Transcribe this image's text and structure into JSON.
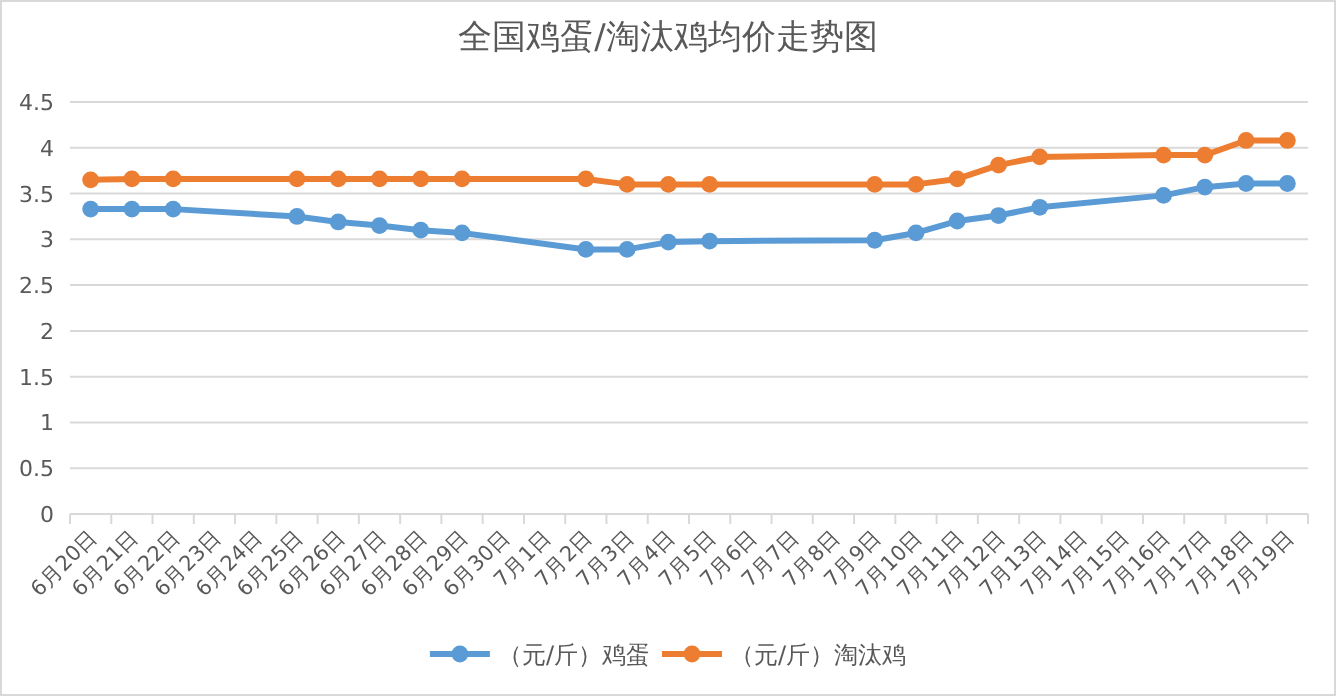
{
  "chart_data": {
    "type": "line",
    "title": "全国鸡蛋/淘汰鸡均价走势图",
    "categories": [
      "6月20日",
      "6月21日",
      "6月22日",
      "6月23日",
      "6月24日",
      "6月25日",
      "6月26日",
      "6月27日",
      "6月28日",
      "6月29日",
      "6月30日",
      "7月1日",
      "7月2日",
      "7月3日",
      "7月4日",
      "7月5日",
      "7月6日",
      "7月7日",
      "7月8日",
      "7月9日",
      "7月10日",
      "7月11日",
      "7月12日",
      "7月13日",
      "7月14日",
      "7月15日",
      "7月16日",
      "7月17日",
      "7月18日",
      "7月19日"
    ],
    "series": [
      {
        "name": "（元/斤）鸡蛋",
        "color": "#5b9bd5",
        "values": [
          3.33,
          3.33,
          3.33,
          null,
          null,
          3.25,
          3.19,
          3.15,
          3.1,
          3.07,
          null,
          null,
          2.89,
          2.89,
          2.97,
          2.98,
          null,
          null,
          null,
          2.99,
          3.07,
          3.2,
          3.26,
          3.35,
          null,
          null,
          3.48,
          3.57,
          3.61,
          3.61
        ]
      },
      {
        "name": "（元/斤）淘汰鸡",
        "color": "#ed7d31",
        "values": [
          3.65,
          3.66,
          3.66,
          null,
          null,
          3.66,
          3.66,
          3.66,
          3.66,
          3.66,
          null,
          null,
          3.66,
          3.6,
          3.6,
          3.6,
          null,
          null,
          null,
          3.6,
          3.6,
          3.66,
          3.81,
          3.9,
          null,
          null,
          3.92,
          3.92,
          4.08,
          4.08
        ]
      }
    ],
    "ylim": [
      0,
      4.5
    ],
    "yticks": [
      0,
      0.5,
      1,
      1.5,
      2,
      2.5,
      3,
      3.5,
      4,
      4.5
    ],
    "grid": "y",
    "legend": "bottom",
    "marker": "circle",
    "line_style": "solid"
  }
}
